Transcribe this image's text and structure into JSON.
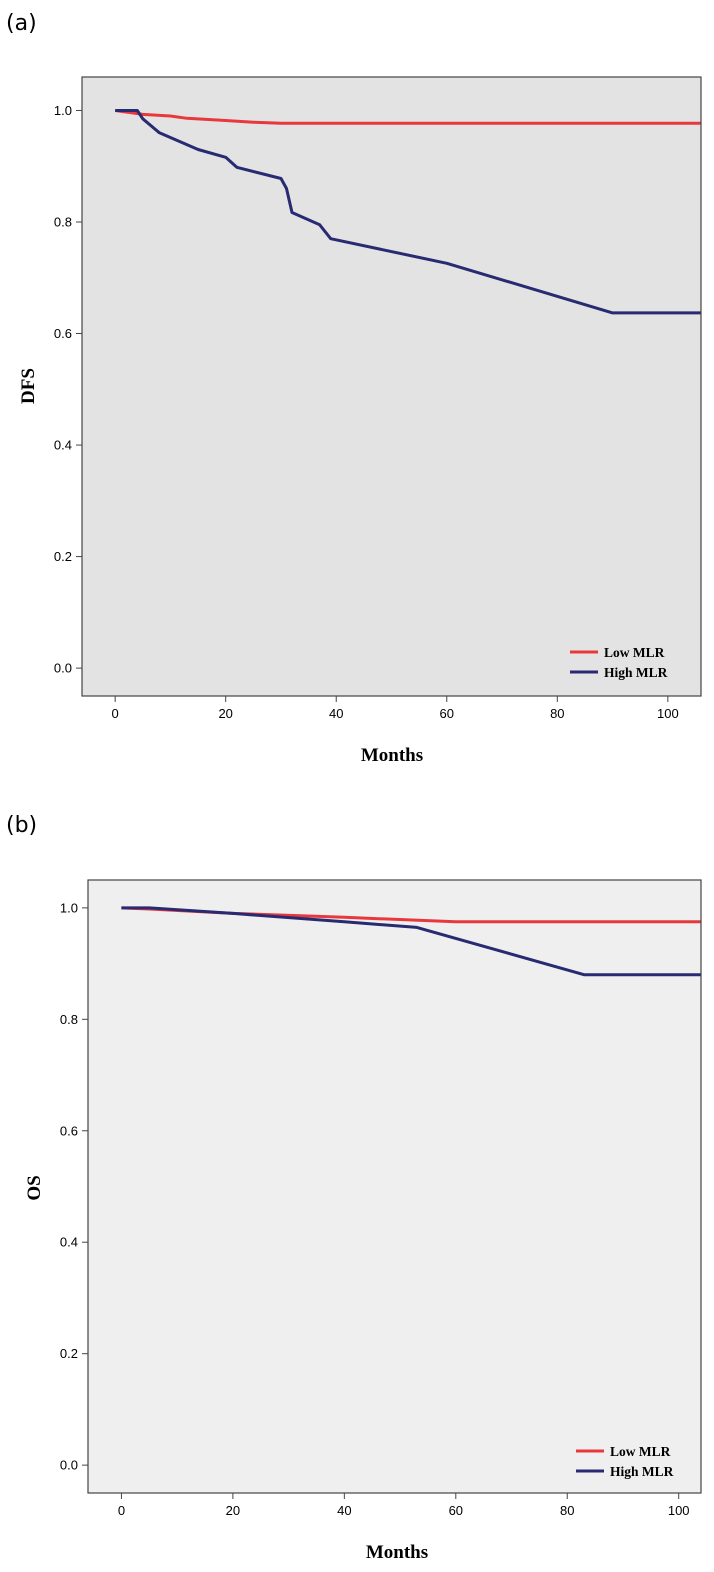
{
  "chart_data": [
    {
      "panel_label": "(a)",
      "type": "line",
      "step": true,
      "xlabel": "Months",
      "ylabel": "DFS",
      "xlim": [
        -6,
        106
      ],
      "ylim": [
        -0.05,
        1.06
      ],
      "xticks": [
        0,
        20,
        40,
        60,
        80,
        100
      ],
      "yticks": [
        0.0,
        0.2,
        0.4,
        0.6,
        0.8,
        1.0
      ],
      "xtick_labels": [
        "0",
        "20",
        "40",
        "60",
        "80",
        "100"
      ],
      "ytick_labels": [
        "0.0",
        "0.2",
        "0.4",
        "0.6",
        "0.8",
        "1.0"
      ],
      "plot_background": "#e3e3e3",
      "grid": false,
      "legend_position": "bottom-right",
      "series": [
        {
          "name": "Low MLR",
          "color": "#e8383d",
          "points": [
            [
              0,
              1.0
            ],
            [
              5,
              0.993
            ],
            [
              10,
              0.99
            ],
            [
              13,
              0.986
            ],
            [
              20,
              0.982
            ],
            [
              25,
              0.979
            ],
            [
              30,
              0.977
            ],
            [
              60,
              0.977
            ],
            [
              106,
              0.977
            ]
          ]
        },
        {
          "name": "High MLR",
          "color": "#282a72",
          "points": [
            [
              0,
              1.0
            ],
            [
              4,
              1.0
            ],
            [
              5,
              0.985
            ],
            [
              8,
              0.96
            ],
            [
              15,
              0.93
            ],
            [
              20,
              0.916
            ],
            [
              22,
              0.898
            ],
            [
              30,
              0.878
            ],
            [
              31,
              0.86
            ],
            [
              32,
              0.817
            ],
            [
              37,
              0.795
            ],
            [
              39,
              0.77
            ],
            [
              60,
              0.726
            ],
            [
              90,
              0.637
            ],
            [
              106,
              0.637
            ]
          ]
        }
      ]
    },
    {
      "panel_label": "(b)",
      "type": "line",
      "step": true,
      "xlabel": "Months",
      "ylabel": "OS",
      "xlim": [
        -6,
        104
      ],
      "ylim": [
        -0.05,
        1.05
      ],
      "xticks": [
        0,
        20,
        40,
        60,
        80,
        100
      ],
      "yticks": [
        0.0,
        0.2,
        0.4,
        0.6,
        0.8,
        1.0
      ],
      "xtick_labels": [
        "0",
        "20",
        "40",
        "60",
        "80",
        "100"
      ],
      "ytick_labels": [
        "0.0",
        "0.2",
        "0.4",
        "0.6",
        "0.8",
        "1.0"
      ],
      "plot_background": "#efefef",
      "grid": false,
      "legend_position": "bottom-right",
      "series": [
        {
          "name": "Low MLR",
          "color": "#e8383d",
          "points": [
            [
              0,
              1.0
            ],
            [
              5,
              0.998
            ],
            [
              20,
              0.99
            ],
            [
              40,
              0.983
            ],
            [
              60,
              0.975
            ],
            [
              104,
              0.975
            ]
          ]
        },
        {
          "name": "High MLR",
          "color": "#282a72",
          "points": [
            [
              0,
              1.0
            ],
            [
              5,
              1.0
            ],
            [
              20,
              0.99
            ],
            [
              40,
              0.975
            ],
            [
              53,
              0.965
            ],
            [
              83,
              0.88
            ],
            [
              104,
              0.88
            ]
          ]
        }
      ]
    }
  ]
}
